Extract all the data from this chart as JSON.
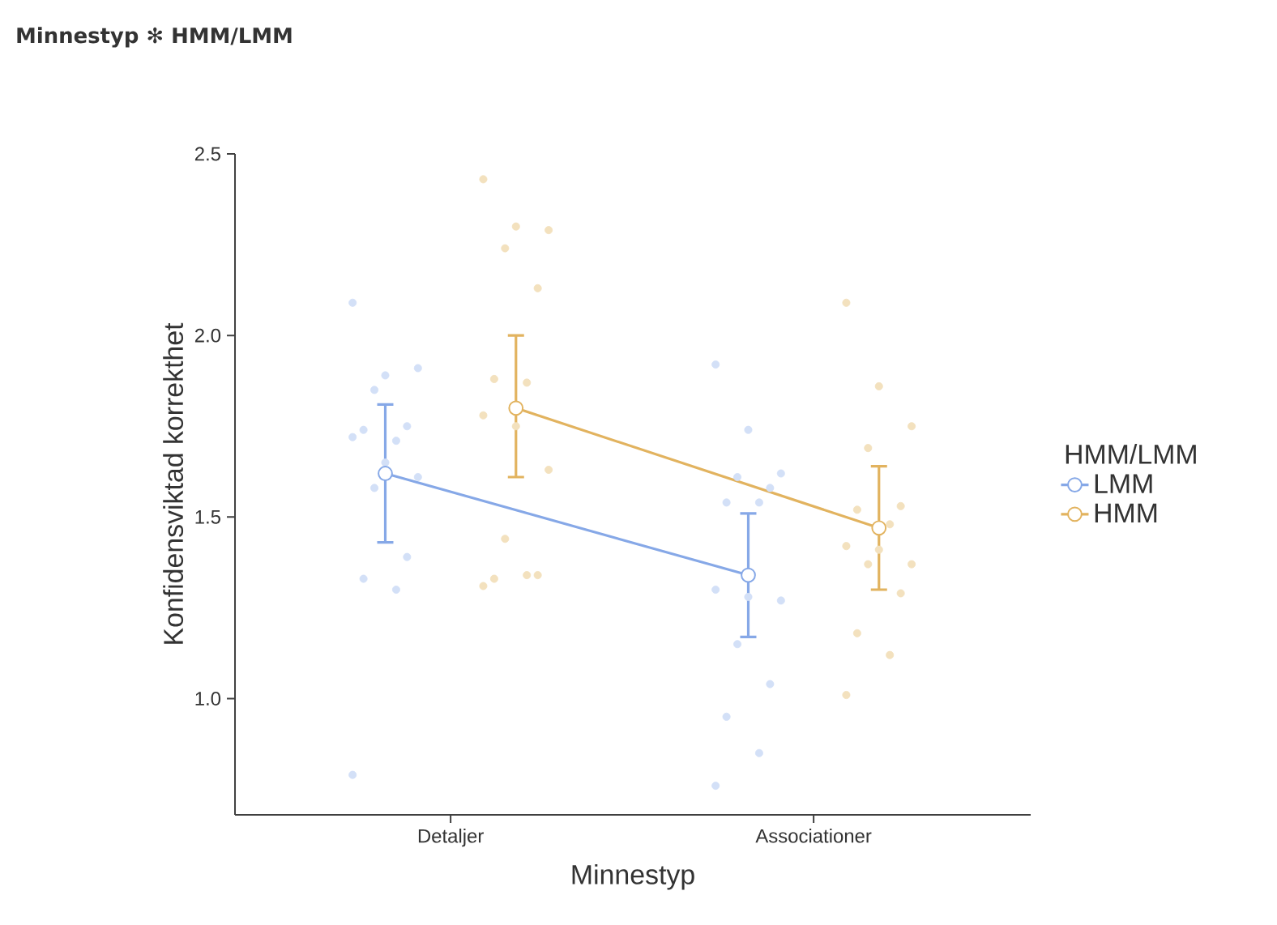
{
  "chart_data": {
    "type": "line",
    "title": "Minnestyp ✻ HMM/LMM",
    "xlabel": "Minnestyp",
    "ylabel": "Konfidensviktad korrekthet",
    "legend_title": "HMM/LMM",
    "categories": [
      "Detaljer",
      "Associationer"
    ],
    "ylim": [
      0.68,
      2.5
    ],
    "yticks": [
      {
        "value": 1.0,
        "label": "1.0"
      },
      1.5,
      {
        "value": 2.0,
        "label": "2.0"
      },
      2.5
    ],
    "legend": "right",
    "marker": "circle",
    "line_style": "solid",
    "grid": false,
    "series": [
      {
        "name": "LMM",
        "color": "#86a8e7",
        "values": [
          1.62,
          1.34
        ],
        "errors": [
          [
            1.43,
            1.81
          ],
          [
            1.17,
            1.51
          ]
        ]
      },
      {
        "name": "HMM",
        "color": "#e2b35f",
        "values": [
          1.8,
          1.47
        ],
        "errors": [
          [
            1.61,
            2.0
          ],
          [
            1.3,
            1.64
          ]
        ]
      },
      {
        "type": "scatter",
        "color": "#d3e0f7",
        "x": [
          "Detaljer",
          "Detaljer",
          "Detaljer",
          "Detaljer",
          "Detaljer",
          "Detaljer",
          "Detaljer",
          "Detaljer",
          "Detaljer",
          "Detaljer",
          "Detaljer",
          "Detaljer",
          "Detaljer",
          "Detaljer",
          "Detaljer",
          "Associationer",
          "Associationer",
          "Associationer",
          "Associationer",
          "Associationer",
          "Associationer",
          "Associationer",
          "Associationer",
          "Associationer",
          "Associationer",
          "Associationer",
          "Associationer",
          "Associationer",
          "Associationer",
          "Associationer"
        ],
        "values": [
          2.09,
          1.89,
          1.91,
          1.85,
          1.75,
          1.74,
          1.71,
          1.72,
          1.65,
          1.61,
          1.58,
          1.39,
          1.33,
          1.3,
          0.79,
          1.92,
          1.74,
          1.62,
          1.61,
          1.58,
          1.54,
          1.54,
          1.3,
          1.28,
          1.27,
          1.15,
          1.04,
          0.95,
          0.85,
          0.76
        ]
      },
      {
        "type": "scatter",
        "color": "#f3e1be",
        "x": [
          "Detaljer",
          "Detaljer",
          "Detaljer",
          "Detaljer",
          "Detaljer",
          "Detaljer",
          "Detaljer",
          "Detaljer",
          "Detaljer",
          "Detaljer",
          "Detaljer",
          "Detaljer",
          "Detaljer",
          "Detaljer",
          "Detaljer",
          "Associationer",
          "Associationer",
          "Associationer",
          "Associationer",
          "Associationer",
          "Associationer",
          "Associationer",
          "Associationer",
          "Associationer",
          "Associationer",
          "Associationer",
          "Associationer",
          "Associationer",
          "Associationer",
          "Associationer"
        ],
        "values": [
          2.43,
          2.3,
          2.29,
          2.24,
          2.13,
          1.88,
          1.87,
          1.78,
          1.75,
          1.63,
          1.44,
          1.34,
          1.33,
          1.34,
          1.31,
          2.09,
          1.86,
          1.75,
          1.69,
          1.53,
          1.52,
          1.48,
          1.42,
          1.41,
          1.37,
          1.37,
          1.29,
          1.18,
          1.12,
          1.01
        ]
      }
    ]
  }
}
